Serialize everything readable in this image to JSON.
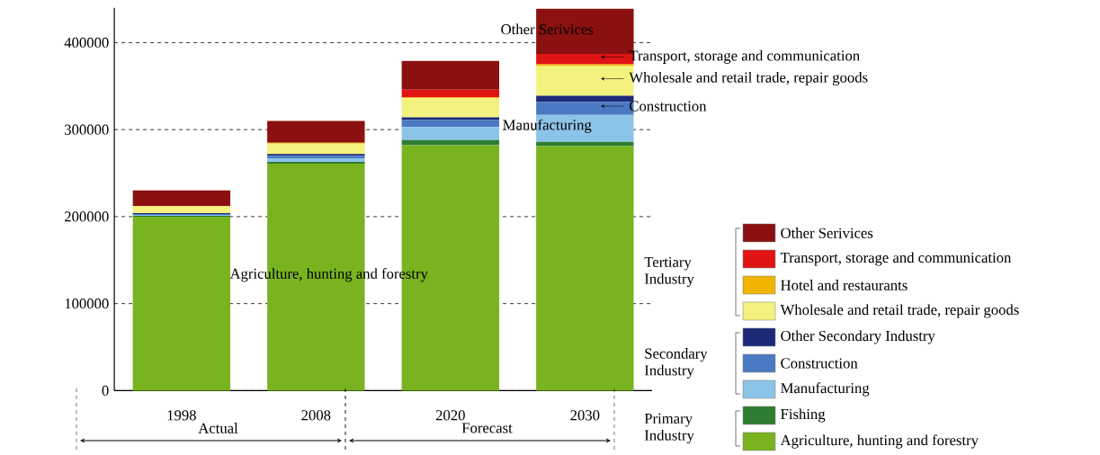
{
  "chart_data": {
    "type": "bar",
    "stacked": true,
    "categories": [
      "1998",
      "2008",
      "2020",
      "2030"
    ],
    "series": [
      {
        "name": "Agriculture, hunting and forestry",
        "color": "#79b31f",
        "values": [
          200000,
          261000,
          282000,
          281000
        ]
      },
      {
        "name": "Fishing",
        "color": "#2e7d32",
        "values": [
          1000,
          2000,
          6000,
          5000
        ]
      },
      {
        "name": "Manufacturing",
        "color": "#8cc4e8",
        "values": [
          1000,
          4000,
          15000,
          31000
        ]
      },
      {
        "name": "Construction",
        "color": "#4b79c2",
        "values": [
          1000,
          3000,
          8000,
          15000
        ]
      },
      {
        "name": "Other Secondary Industry",
        "color": "#1c2a78",
        "values": [
          1000,
          2000,
          3000,
          7000
        ]
      },
      {
        "name": "Wholesale and retail trade, repair goods",
        "color": "#f4f27e",
        "values": [
          8000,
          12000,
          22000,
          34000
        ]
      },
      {
        "name": "Hotel and restaurants",
        "color": "#f0b400",
        "values": [
          0,
          1000,
          1000,
          2000
        ]
      },
      {
        "name": "Transport, storage and communication",
        "color": "#e01414",
        "values": [
          0,
          0,
          9000,
          12000
        ]
      },
      {
        "name": "Other Serivices",
        "color": "#8b1010",
        "values": [
          18000,
          25000,
          33000,
          52000
        ]
      }
    ],
    "ylim": [
      0,
      440000
    ],
    "yticks": [
      0,
      100000,
      200000,
      300000,
      400000
    ],
    "grid": "y",
    "legend": "right",
    "annotations": [
      "Other Serivices",
      "Transport, storage and communication",
      "Wholesale and retail trade, repair goods",
      "Construction",
      "Manufacturing",
      "Agriculture, hunting and forestry",
      "Actual",
      "Forecast",
      "Tertiary Industry",
      "Secondary Industry",
      "Primary Industry"
    ]
  }
}
